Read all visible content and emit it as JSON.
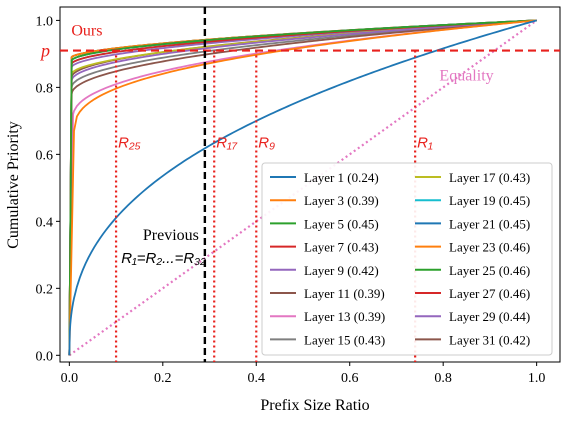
{
  "chart_data": {
    "type": "line",
    "xlabel": "Prefix Size Ratio",
    "ylabel": "Cumulative Priority",
    "xlim": [
      -0.02,
      1.05
    ],
    "ylim": [
      -0.02,
      1.04
    ],
    "x_ticks": [
      0.0,
      0.2,
      0.4,
      0.6,
      0.8,
      1.0
    ],
    "y_ticks": [
      0.0,
      0.2,
      0.4,
      0.6,
      0.8,
      1.0
    ],
    "x_tick_labels": [
      "0.0",
      "0.2",
      "0.4",
      "0.6",
      "0.8",
      "1.0"
    ],
    "y_tick_labels": [
      "0.0",
      "0.2",
      "0.4",
      "0.6",
      "0.8",
      "1.0"
    ],
    "legend_position": "lower-right",
    "legend_columns": 2,
    "series": [
      {
        "name": "Layer 1 (0.24)",
        "color": "#1f77b4",
        "start": 0.0,
        "knee": 0.12,
        "exp": 0.45
      },
      {
        "name": "Layer 3 (0.39)",
        "color": "#ff7f0e",
        "start": 0.67,
        "knee": 0.04,
        "exp": 0.4
      },
      {
        "name": "Layer 5 (0.45)",
        "color": "#2ca02c",
        "start": 0.88,
        "knee": 0.02,
        "exp": 0.55
      },
      {
        "name": "Layer 7 (0.43)",
        "color": "#d62728",
        "start": 0.87,
        "knee": 0.02,
        "exp": 0.55
      },
      {
        "name": "Layer 9 (0.42)",
        "color": "#9467bd",
        "start": 0.82,
        "knee": 0.02,
        "exp": 0.5
      },
      {
        "name": "Layer 11 (0.39)",
        "color": "#8c564b",
        "start": 0.78,
        "knee": 0.02,
        "exp": 0.5
      },
      {
        "name": "Layer 13 (0.39)",
        "color": "#e377c2",
        "start": 0.71,
        "knee": 0.03,
        "exp": 0.45
      },
      {
        "name": "Layer 15 (0.43)",
        "color": "#7f7f7f",
        "start": 0.8,
        "knee": 0.02,
        "exp": 0.5
      },
      {
        "name": "Layer 17 (0.43)",
        "color": "#bcbd22",
        "start": 0.84,
        "knee": 0.02,
        "exp": 0.55
      },
      {
        "name": "Layer 19 (0.45)",
        "color": "#17becf",
        "start": 0.87,
        "knee": 0.02,
        "exp": 0.55
      },
      {
        "name": "Layer 21 (0.45)",
        "color": "#1f77b4",
        "start": 0.88,
        "knee": 0.02,
        "exp": 0.55
      },
      {
        "name": "Layer 23 (0.46)",
        "color": "#ff7f0e",
        "start": 0.89,
        "knee": 0.02,
        "exp": 0.6
      },
      {
        "name": "Layer 25 (0.46)",
        "color": "#2ca02c",
        "start": 0.89,
        "knee": 0.02,
        "exp": 0.6
      },
      {
        "name": "Layer 27 (0.46)",
        "color": "#d62728",
        "start": 0.89,
        "knee": 0.02,
        "exp": 0.6
      },
      {
        "name": "Layer 29 (0.44)",
        "color": "#9467bd",
        "start": 0.86,
        "knee": 0.02,
        "exp": 0.55
      },
      {
        "name": "Layer 31 (0.42)",
        "color": "#8c564b",
        "start": 0.83,
        "knee": 0.02,
        "exp": 0.5
      }
    ],
    "equality_line": {
      "label": "Equality",
      "color": "#e377c2",
      "points": [
        [
          0,
          0
        ],
        [
          1,
          1
        ]
      ]
    },
    "p_line": {
      "label": "p",
      "y": 0.91,
      "color": "#e8211d"
    },
    "previous_line": {
      "x": 0.29,
      "color": "#000000",
      "label_line1": "Previous",
      "label_line2": "R₁=R₂...=R₃₂"
    },
    "ratio_markers": [
      {
        "label": "R₂₅",
        "x": 0.1
      },
      {
        "label": "R₁₇",
        "x": 0.31
      },
      {
        "label": "R₉",
        "x": 0.4
      },
      {
        "label": "R₁",
        "x": 0.74
      }
    ],
    "annotations": {
      "ours": "Ours",
      "equality": "Equality"
    }
  }
}
